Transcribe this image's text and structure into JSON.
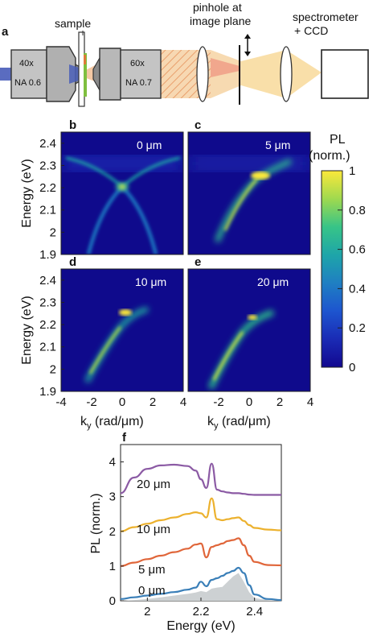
{
  "figure": {
    "panel_letters": [
      "a",
      "b",
      "c",
      "d",
      "e",
      "f"
    ],
    "setup": {
      "obj1_mag": "40x",
      "obj1_na": "NA 0.6",
      "obj2_mag": "60x",
      "obj2_na": "NA 0.7",
      "sample_label": "sample",
      "pinhole_line1": "pinhole at",
      "pinhole_line2": "image plane",
      "spectro_line1": "spectrometer",
      "spectro_line2": "+ CCD"
    },
    "maps": {
      "labels": [
        "0 μm",
        "5 μm",
        "10 μm",
        "20 μm"
      ],
      "y_ticks": [
        "2.4",
        "2.3",
        "2.2",
        "2.1",
        "2",
        "1.9"
      ],
      "x_ticks": [
        "-4",
        "-2",
        "0",
        "2",
        "4"
      ],
      "ylabel": "Energy (eV)",
      "xlabel_main": "k",
      "xlabel_sub": "y",
      "xlabel_rest": " (rad/μm)"
    },
    "colorbar": {
      "title_line1": "PL",
      "title_line2": "(norm.)",
      "ticks": [
        "1",
        "0.8",
        "0.6",
        "0.4",
        "0.2",
        "0"
      ],
      "colors": [
        "#fbe83a",
        "#9fd94f",
        "#37c487",
        "#1ea5a9",
        "#1f7fc2",
        "#1d55cf",
        "#1a2bb5",
        "#12088f"
      ]
    }
  },
  "chart_data": {
    "type": "line",
    "panel": "f",
    "xlabel": "Energy (eV)",
    "ylabel": "PL (norm.)",
    "xlim": [
      1.9,
      2.5
    ],
    "ylim": [
      0,
      4.5
    ],
    "x_ticks": [
      "2",
      "2.2",
      "2.4"
    ],
    "y_ticks": [
      "0",
      "1",
      "2",
      "3",
      "4"
    ],
    "x": [
      1.9,
      1.95,
      2.0,
      2.05,
      2.1,
      2.15,
      2.18,
      2.2,
      2.22,
      2.24,
      2.26,
      2.28,
      2.3,
      2.32,
      2.34,
      2.36,
      2.38,
      2.4,
      2.45,
      2.5
    ],
    "series": [
      {
        "name": "0 μm",
        "color": "#3a7fb8",
        "values": [
          0.05,
          0.1,
          0.15,
          0.2,
          0.25,
          0.32,
          0.38,
          0.55,
          0.42,
          0.6,
          0.65,
          0.72,
          0.8,
          0.86,
          0.95,
          0.8,
          0.45,
          0.18,
          0.05,
          0.02
        ]
      },
      {
        "name": "5 μm",
        "color": "#e0663a",
        "values": [
          1.0,
          1.1,
          1.2,
          1.3,
          1.4,
          1.5,
          1.62,
          1.65,
          1.25,
          1.55,
          1.6,
          1.65,
          1.72,
          1.75,
          1.8,
          1.6,
          1.3,
          1.12,
          1.03,
          1.02
        ]
      },
      {
        "name": "10 μm",
        "color": "#ecb12d",
        "values": [
          2.0,
          2.12,
          2.22,
          2.32,
          2.4,
          2.5,
          2.55,
          2.52,
          2.4,
          2.95,
          2.35,
          2.32,
          2.35,
          2.38,
          2.4,
          2.3,
          2.18,
          2.1,
          2.05,
          2.03
        ]
      },
      {
        "name": "20 μm",
        "color": "#8b5aa4",
        "values": [
          3.1,
          3.55,
          3.8,
          3.9,
          3.92,
          3.88,
          3.75,
          3.5,
          3.25,
          3.95,
          3.2,
          3.15,
          3.12,
          3.1,
          3.1,
          3.08,
          3.06,
          3.05,
          3.05,
          3.05
        ]
      }
    ],
    "reference_fill": {
      "color": "#cdd1d3",
      "values": [
        0.0,
        0.02,
        0.05,
        0.1,
        0.15,
        0.2,
        0.24,
        0.28,
        0.25,
        0.35,
        0.38,
        0.4,
        0.55,
        0.7,
        0.8,
        0.55,
        0.25,
        0.08,
        0.02,
        0.0
      ]
    },
    "grid": false
  }
}
